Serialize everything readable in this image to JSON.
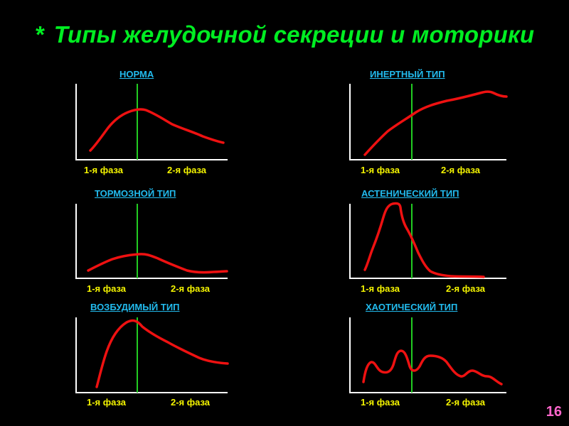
{
  "title": "Типы желудочной секреции и моторики",
  "title_bullet": "*",
  "page_number": "16",
  "colors": {
    "background": "#000000",
    "title": "#00ee22",
    "label": "#22bbee",
    "phase": "#f5f500",
    "curve": "#ee1111",
    "divider": "#22cc22",
    "axis": "#ffffff",
    "page_number": "#ff66cc"
  },
  "panels": [
    {
      "id": "norma",
      "label": "НОРМА",
      "phase1": "1-я фаза",
      "phase2": "2-я фаза"
    },
    {
      "id": "inert",
      "label": "ИНЕРТНЫЙ ТИП",
      "phase1": "1-я фаза",
      "phase2": "2-я фаза"
    },
    {
      "id": "tormoz",
      "label": "ТОРМОЗНОЙ ТИП",
      "phase1": "1-я фаза",
      "phase2": "2-я фаза"
    },
    {
      "id": "asten",
      "label": "АСТЕНИЧЕСКИЙ ТИП",
      "phase1": "1-я фаза",
      "phase2": "2-я фаза"
    },
    {
      "id": "vozbud",
      "label": "ВОЗБУДИМЫЙ ТИП",
      "phase1": "1-я фаза",
      "phase2": "2-я фаза"
    },
    {
      "id": "haot",
      "label": "ХАОТИЧЕСКИЙ ТИП",
      "phase1": "1-я фаза",
      "phase2": "2-я фаза"
    }
  ]
}
